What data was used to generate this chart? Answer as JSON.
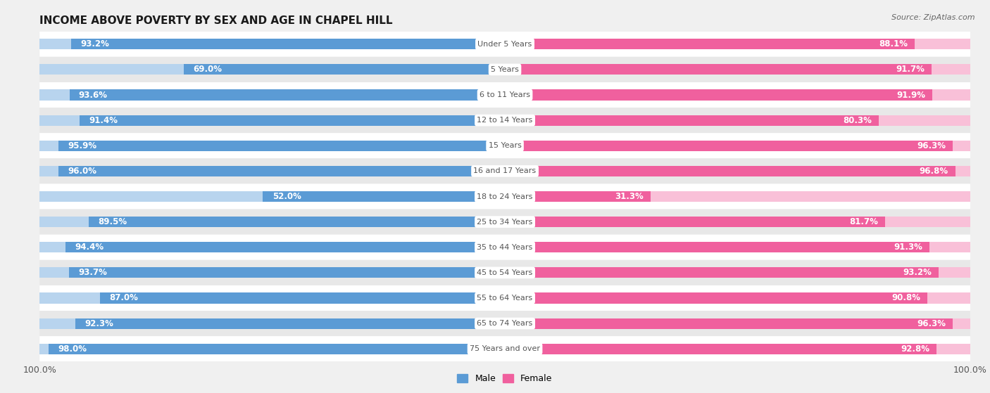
{
  "title": "INCOME ABOVE POVERTY BY SEX AND AGE IN CHAPEL HILL",
  "source": "Source: ZipAtlas.com",
  "categories": [
    "Under 5 Years",
    "5 Years",
    "6 to 11 Years",
    "12 to 14 Years",
    "15 Years",
    "16 and 17 Years",
    "18 to 24 Years",
    "25 to 34 Years",
    "35 to 44 Years",
    "45 to 54 Years",
    "55 to 64 Years",
    "65 to 74 Years",
    "75 Years and over"
  ],
  "male_values": [
    93.2,
    69.0,
    93.6,
    91.4,
    95.9,
    96.0,
    52.0,
    89.5,
    94.4,
    93.7,
    87.0,
    92.3,
    98.0
  ],
  "female_values": [
    88.1,
    91.7,
    91.9,
    80.3,
    96.3,
    96.8,
    31.3,
    81.7,
    91.3,
    93.2,
    90.8,
    96.3,
    92.8
  ],
  "male_color": "#5b9bd5",
  "female_color": "#f0609e",
  "male_color_light": "#b8d4ee",
  "female_color_light": "#f9c0d8",
  "background_color": "#f0f0f0",
  "row_bg_even": "#ffffff",
  "row_bg_odd": "#e8e8e8",
  "label_color_white": "#ffffff",
  "label_color_dark": "#444444",
  "center_label_color": "#555555",
  "title_fontsize": 11,
  "label_fontsize": 8.5,
  "tick_fontsize": 9,
  "source_fontsize": 8
}
